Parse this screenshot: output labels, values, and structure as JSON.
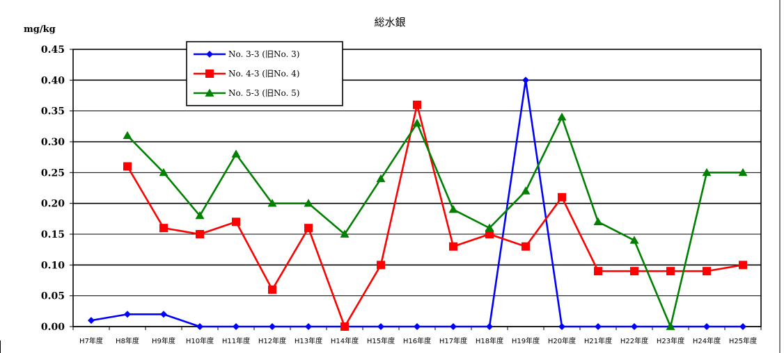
{
  "chart_data": {
    "type": "line",
    "title": "総水銀",
    "ylabel": "mg/kg",
    "xlabel": "",
    "ylim": [
      0,
      0.45
    ],
    "yticks": [
      "0.00",
      "0.05",
      "0.10",
      "0.15",
      "0.20",
      "0.25",
      "0.30",
      "0.35",
      "0.40",
      "0.45"
    ],
    "grid": true,
    "legend_position": "top-left",
    "categories": [
      "H7年度",
      "H8年度",
      "H9年度",
      "H10年度",
      "H11年度",
      "H12年度",
      "H13年度",
      "H14年度",
      "H15年度",
      "H16年度",
      "H17年度",
      "H18年度",
      "H19年度",
      "H20年度",
      "H21年度",
      "H22年度",
      "H23年度",
      "H24年度",
      "H25年度"
    ],
    "series": [
      {
        "name": "No. 3-3 (旧No. 3)",
        "color": "#0000ff",
        "marker": "diamond",
        "values": [
          0.01,
          0.02,
          0.02,
          0.0,
          0.0,
          0.0,
          0.0,
          0.0,
          0.0,
          0.0,
          0.0,
          0.0,
          0.4,
          0.0,
          0.0,
          0.0,
          0.0,
          0.0,
          0.0
        ]
      },
      {
        "name": "No. 4-3 (旧No. 4)",
        "color": "#ff0000",
        "marker": "square",
        "values": [
          null,
          0.26,
          0.16,
          0.15,
          0.17,
          0.06,
          0.16,
          0.0,
          0.1,
          0.36,
          0.13,
          0.15,
          0.13,
          0.21,
          0.09,
          0.09,
          0.09,
          0.09,
          0.1
        ]
      },
      {
        "name": "No. 5-3 (旧No. 5)",
        "color": "#008000",
        "marker": "triangle",
        "values": [
          null,
          0.31,
          0.25,
          0.18,
          0.28,
          0.2,
          0.2,
          0.15,
          0.24,
          0.33,
          0.19,
          0.16,
          0.22,
          0.34,
          0.17,
          0.14,
          0.0,
          0.25,
          0.25
        ]
      }
    ]
  }
}
